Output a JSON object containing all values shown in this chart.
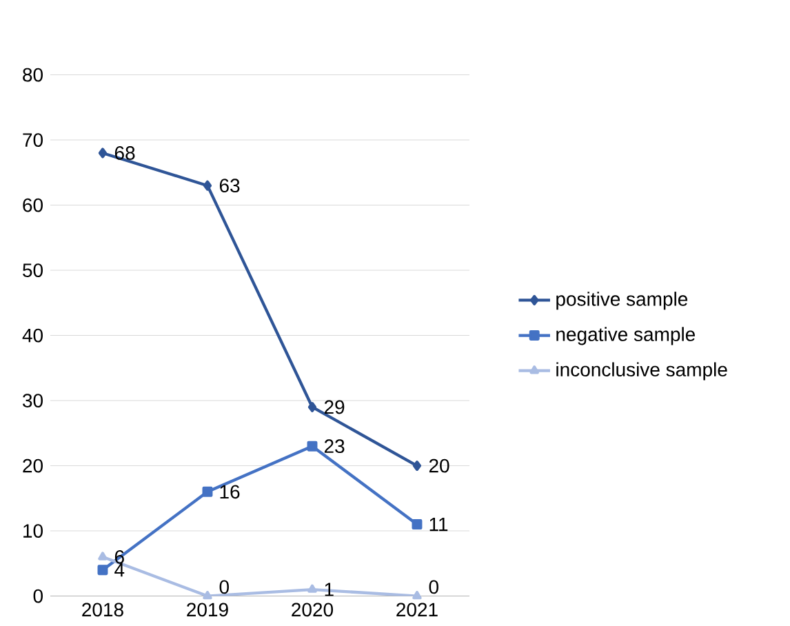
{
  "chart_data": {
    "type": "line",
    "categories": [
      "2018",
      "2019",
      "2020",
      "2021"
    ],
    "series": [
      {
        "name": "positive sample",
        "color": "#2f5597",
        "marker": "diamond",
        "values": [
          68,
          63,
          29,
          20
        ]
      },
      {
        "name": "negative sample",
        "color": "#4472c4",
        "marker": "square",
        "values": [
          4,
          16,
          23,
          11
        ]
      },
      {
        "name": "inconclusive sample",
        "color": "#a9bce3",
        "marker": "triangle",
        "values": [
          6,
          0,
          1,
          0
        ]
      }
    ],
    "ylim": [
      0,
      80
    ],
    "yticks": [
      0,
      10,
      20,
      30,
      40,
      50,
      60,
      70,
      80
    ],
    "grid": "y",
    "legend": "right",
    "data_labels": true
  }
}
